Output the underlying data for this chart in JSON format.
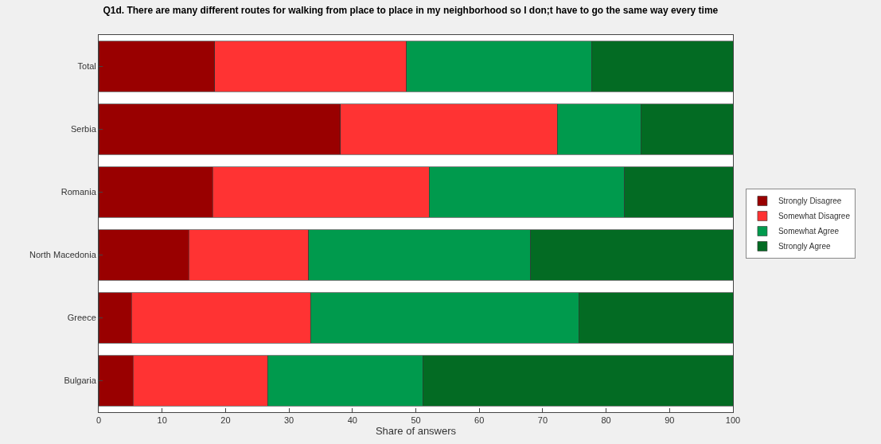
{
  "chart_data": {
    "type": "bar",
    "orientation": "horizontal",
    "stacked": true,
    "title": "Q1d. There are many different routes for walking from place to place in my neighborhood so I don;t have to go the same way every time",
    "xlabel": "Share of answers",
    "categories": [
      "Total",
      "Serbia",
      "Romania",
      "North Macedonia",
      "Greece",
      "Bulgaria"
    ],
    "series": [
      {
        "name": "Strongly Disagree",
        "color": "#990000",
        "values": [
          18.3,
          38.1,
          18.0,
          14.2,
          5.2,
          5.4
        ]
      },
      {
        "name": "Somewhat Disagree",
        "color": "#ff3333",
        "values": [
          30.2,
          34.2,
          34.1,
          18.9,
          28.2,
          21.2
        ]
      },
      {
        "name": "Somewhat Agree",
        "color": "#009a4d",
        "values": [
          29.2,
          13.2,
          30.8,
          35.0,
          42.3,
          24.5
        ]
      },
      {
        "name": "Strongly Agree",
        "color": "#036b23",
        "values": [
          22.3,
          14.5,
          17.1,
          31.9,
          24.3,
          48.9
        ]
      }
    ],
    "xlim": [
      0,
      100
    ],
    "xticks": [
      0,
      10,
      20,
      30,
      40,
      50,
      60,
      70,
      80,
      90,
      100
    ],
    "legend": "right"
  }
}
